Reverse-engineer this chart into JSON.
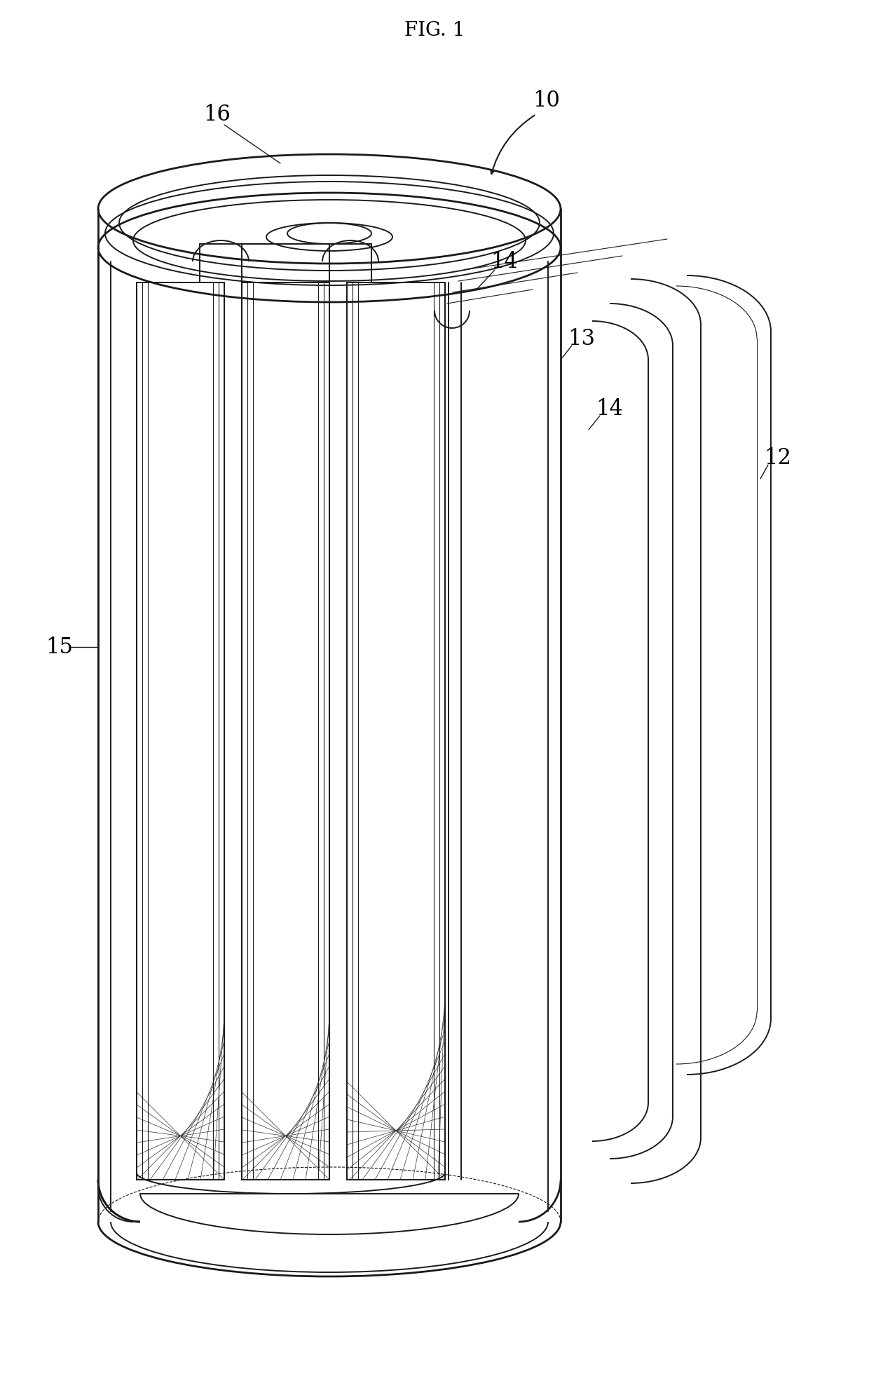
{
  "title": "FIG. 1",
  "title_fontsize": 20,
  "title_font": "serif",
  "bg_color": "#ffffff",
  "line_color": "#1a1a1a",
  "label_color": "#000000",
  "label_fontsize": 22,
  "lw_thick": 2.0,
  "lw_med": 1.4,
  "lw_thin": 0.8,
  "lw_hatch": 0.5
}
